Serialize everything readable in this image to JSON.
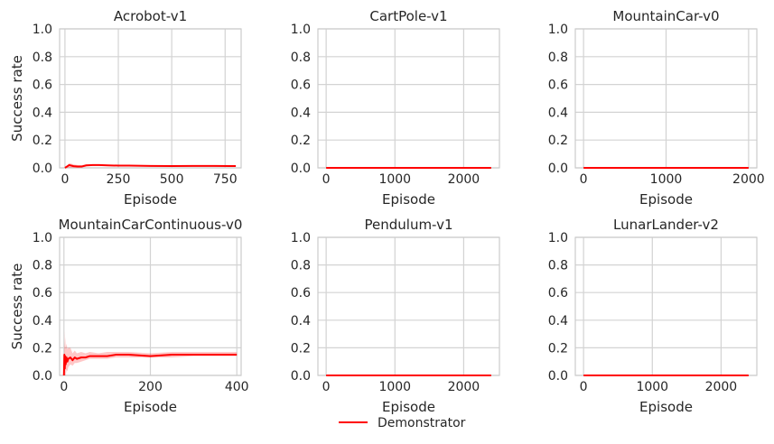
{
  "legend": {
    "label": "Demonstrator",
    "color": "#ff0000"
  },
  "chart_data": [
    {
      "type": "line",
      "title": "Acrobot-v1",
      "xlabel": "Episode",
      "ylabel": "Success rate",
      "xlim": [
        -25,
        825
      ],
      "ylim": [
        0,
        1
      ],
      "xticks": [
        0,
        250,
        500,
        750
      ],
      "yticks": [
        0.0,
        0.2,
        0.4,
        0.6,
        0.8,
        1.0
      ],
      "grid": true,
      "series": [
        {
          "name": "Demonstrator",
          "color": "#ff0000",
          "x": [
            0,
            20,
            40,
            60,
            80,
            100,
            130,
            160,
            200,
            250,
            300,
            400,
            500,
            600,
            700,
            800
          ],
          "y": [
            0.0,
            0.02,
            0.012,
            0.01,
            0.01,
            0.018,
            0.02,
            0.02,
            0.018,
            0.016,
            0.016,
            0.014,
            0.013,
            0.014,
            0.014,
            0.013
          ],
          "lower": [
            0.0,
            0.0,
            0.0,
            0.0,
            0.002,
            0.01,
            0.014,
            0.015,
            0.013,
            0.012,
            0.012,
            0.011,
            0.01,
            0.011,
            0.011,
            0.01
          ],
          "upper": [
            0.0,
            0.035,
            0.025,
            0.02,
            0.02,
            0.026,
            0.026,
            0.025,
            0.023,
            0.02,
            0.02,
            0.017,
            0.016,
            0.017,
            0.017,
            0.016
          ]
        }
      ]
    },
    {
      "type": "line",
      "title": "CartPole-v1",
      "xlabel": "Episode",
      "ylabel": "",
      "xlim": [
        -120,
        2520
      ],
      "ylim": [
        0,
        1
      ],
      "xticks": [
        0,
        1000,
        2000
      ],
      "yticks": [
        0.0,
        0.2,
        0.4,
        0.6,
        0.8,
        1.0
      ],
      "grid": true,
      "series": [
        {
          "name": "Demonstrator",
          "color": "#ff0000",
          "x": [
            0,
            2400
          ],
          "y": [
            0.0,
            0.0
          ],
          "lower": [
            0.0,
            0.0
          ],
          "upper": [
            0.0,
            0.0
          ]
        }
      ]
    },
    {
      "type": "line",
      "title": "MountainCar-v0",
      "xlabel": "Episode",
      "ylabel": "",
      "xlim": [
        -100,
        2100
      ],
      "ylim": [
        0,
        1
      ],
      "xticks": [
        0,
        1000,
        2000
      ],
      "yticks": [
        0.0,
        0.2,
        0.4,
        0.6,
        0.8,
        1.0
      ],
      "grid": true,
      "series": [
        {
          "name": "Demonstrator",
          "color": "#ff0000",
          "x": [
            0,
            2000
          ],
          "y": [
            0.0,
            0.0
          ],
          "lower": [
            0.0,
            0.0
          ],
          "upper": [
            0.0,
            0.0
          ]
        }
      ]
    },
    {
      "type": "line",
      "title": "MountainCarContinuous-v0",
      "xlabel": "Episode",
      "ylabel": "Success rate",
      "xlim": [
        -10,
        410
      ],
      "ylim": [
        0,
        1
      ],
      "xticks": [
        0,
        200,
        400
      ],
      "yticks": [
        0.0,
        0.2,
        0.4,
        0.6,
        0.8,
        1.0
      ],
      "grid": true,
      "series": [
        {
          "name": "Demonstrator",
          "color": "#ff0000",
          "x": [
            0,
            1,
            2,
            3,
            4,
            6,
            8,
            10,
            15,
            20,
            25,
            30,
            40,
            50,
            60,
            80,
            100,
            120,
            150,
            200,
            250,
            300,
            350,
            400
          ],
          "y": [
            0.0,
            0.15,
            0.05,
            0.14,
            0.08,
            0.13,
            0.1,
            0.12,
            0.13,
            0.11,
            0.13,
            0.12,
            0.13,
            0.13,
            0.14,
            0.14,
            0.14,
            0.15,
            0.15,
            0.14,
            0.15,
            0.15,
            0.15,
            0.15
          ],
          "lower": [
            0.0,
            0.0,
            0.0,
            0.0,
            0.0,
            0.04,
            0.03,
            0.06,
            0.08,
            0.07,
            0.09,
            0.09,
            0.1,
            0.11,
            0.12,
            0.12,
            0.12,
            0.13,
            0.13,
            0.13,
            0.13,
            0.14,
            0.14,
            0.14
          ],
          "upper": [
            0.0,
            0.33,
            0.2,
            0.28,
            0.2,
            0.23,
            0.19,
            0.2,
            0.2,
            0.16,
            0.18,
            0.16,
            0.17,
            0.16,
            0.17,
            0.16,
            0.17,
            0.17,
            0.17,
            0.16,
            0.17,
            0.17,
            0.17,
            0.17
          ]
        }
      ]
    },
    {
      "type": "line",
      "title": "Pendulum-v1",
      "xlabel": "Episode",
      "ylabel": "",
      "xlim": [
        -120,
        2520
      ],
      "ylim": [
        0,
        1
      ],
      "xticks": [
        0,
        1000,
        2000
      ],
      "yticks": [
        0.0,
        0.2,
        0.4,
        0.6,
        0.8,
        1.0
      ],
      "grid": true,
      "series": [
        {
          "name": "Demonstrator",
          "color": "#ff0000",
          "x": [
            0,
            2400
          ],
          "y": [
            0.0,
            0.0
          ],
          "lower": [
            0.0,
            0.0
          ],
          "upper": [
            0.0,
            0.0
          ]
        }
      ]
    },
    {
      "type": "line",
      "title": "LunarLander-v2",
      "xlabel": "Episode",
      "ylabel": "",
      "xlim": [
        -120,
        2520
      ],
      "ylim": [
        0,
        1
      ],
      "xticks": [
        0,
        1000,
        2000
      ],
      "yticks": [
        0.0,
        0.2,
        0.4,
        0.6,
        0.8,
        1.0
      ],
      "grid": true,
      "series": [
        {
          "name": "Demonstrator",
          "color": "#ff0000",
          "x": [
            0,
            2400
          ],
          "y": [
            0.0,
            0.0
          ],
          "lower": [
            0.0,
            0.0
          ],
          "upper": [
            0.0,
            0.0
          ]
        }
      ]
    }
  ]
}
